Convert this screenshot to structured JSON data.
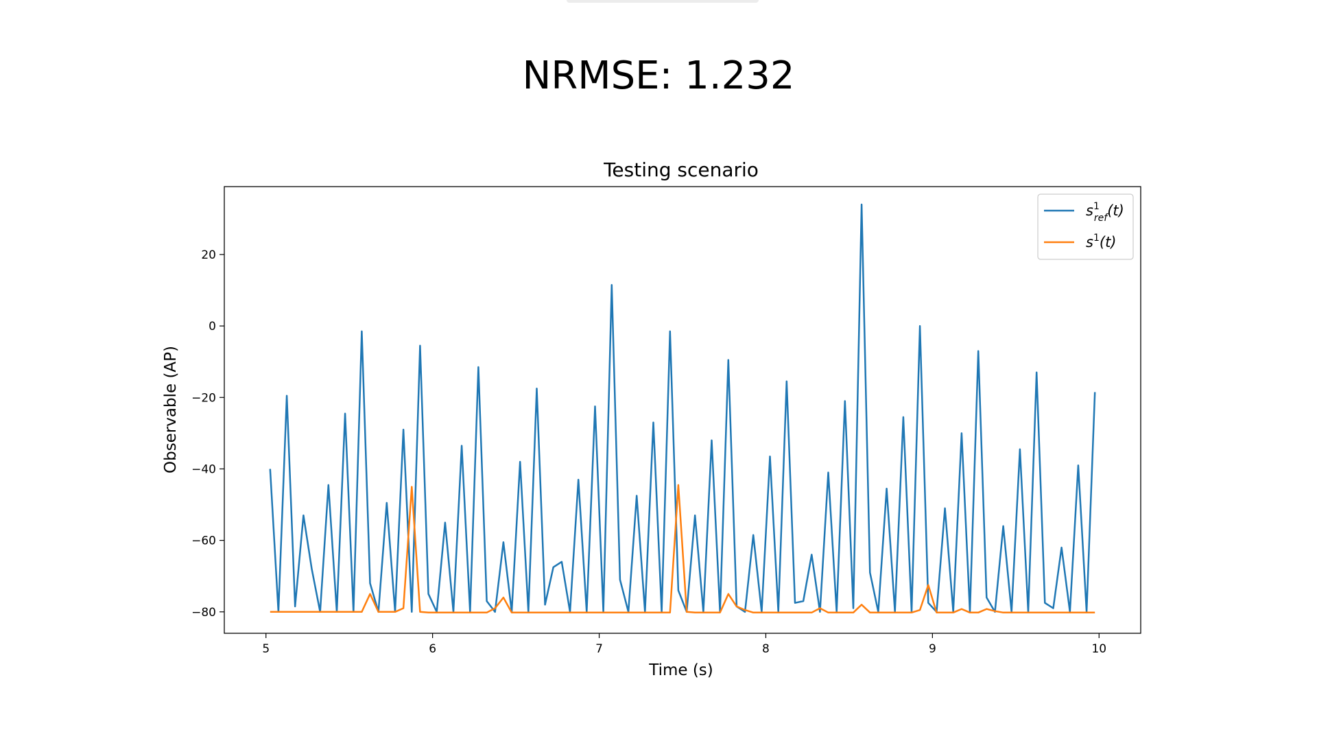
{
  "headline": "NRMSE: 1.232",
  "colors": {
    "series_ref": "#1f77b4",
    "series_model": "#ff7f0e"
  },
  "chart_data": {
    "type": "line",
    "title": "Testing scenario",
    "xlabel": "Time (s)",
    "ylabel": "Observable (AP)",
    "xlim": [
      4.75,
      10.25
    ],
    "ylim": [
      -86,
      39
    ],
    "xticks": [
      5,
      6,
      7,
      8,
      9,
      10
    ],
    "yticks": [
      20,
      0,
      -20,
      -40,
      -60,
      -80
    ],
    "xtick_labels": [
      "5",
      "6",
      "7",
      "8",
      "9",
      "10"
    ],
    "ytick_labels": [
      "20",
      "0",
      "−20",
      "−40",
      "−60",
      "−80"
    ],
    "grid": false,
    "legend_position": "top-right",
    "x": [
      5.025,
      5.075,
      5.125,
      5.175,
      5.225,
      5.275,
      5.325,
      5.375,
      5.425,
      5.475,
      5.525,
      5.575,
      5.625,
      5.675,
      5.725,
      5.775,
      5.825,
      5.875,
      5.925,
      5.975,
      6.025,
      6.075,
      6.125,
      6.175,
      6.225,
      6.275,
      6.325,
      6.375,
      6.425,
      6.475,
      6.525,
      6.575,
      6.625,
      6.675,
      6.725,
      6.775,
      6.825,
      6.875,
      6.925,
      6.975,
      7.025,
      7.075,
      7.125,
      7.175,
      7.225,
      7.275,
      7.325,
      7.375,
      7.425,
      7.475,
      7.525,
      7.575,
      7.625,
      7.675,
      7.725,
      7.775,
      7.825,
      7.875,
      7.925,
      7.975,
      8.025,
      8.075,
      8.125,
      8.175,
      8.225,
      8.275,
      8.325,
      8.375,
      8.425,
      8.475,
      8.525,
      8.575,
      8.625,
      8.675,
      8.725,
      8.775,
      8.825,
      8.875,
      8.925,
      8.975,
      9.025,
      9.075,
      9.125,
      9.175,
      9.225,
      9.275,
      9.325,
      9.375,
      9.425,
      9.475,
      9.525,
      9.575,
      9.625,
      9.675,
      9.725,
      9.775,
      9.825,
      9.875,
      9.925,
      9.975
    ],
    "series": [
      {
        "name": "s_ref^1(t)",
        "values": [
          -40,
          -80,
          -19.5,
          -78.5,
          -53,
          -68,
          -80,
          -44.5,
          -80,
          -24.5,
          -80,
          -1.5,
          -72,
          -80,
          -49.5,
          -80,
          -29,
          -80,
          -5.5,
          -75,
          -80,
          -55,
          -80,
          -33.5,
          -80,
          -11.5,
          -77,
          -80,
          -60.5,
          -80,
          -38,
          -80,
          -17.5,
          -78,
          -67.5,
          -66,
          -80,
          -43,
          -80,
          -22.5,
          -80,
          11.5,
          -71,
          -80,
          -47.5,
          -80,
          -27,
          -80,
          -1.5,
          -74,
          -80,
          -53,
          -80,
          -32,
          -80,
          -9.5,
          -78.5,
          -80,
          -58.5,
          -80,
          -36.5,
          -80,
          -15.5,
          -77.5,
          -77,
          -64,
          -80,
          -41,
          -80,
          -21,
          -79,
          34,
          -69,
          -80,
          -45.5,
          -80,
          -25.5,
          -80,
          0,
          -77.5,
          -80,
          -51,
          -80,
          -30,
          -80,
          -7,
          -76,
          -80,
          -56,
          -80,
          -34.5,
          -80,
          -13,
          -77.5,
          -79,
          -62,
          -80,
          -39,
          -80,
          -18.5
        ]
      },
      {
        "name": "s^1(t)",
        "values": [
          -80,
          -80,
          -80,
          -80,
          -80,
          -80,
          -80,
          -80,
          -80,
          -80,
          -80,
          -80,
          -75,
          -80,
          -80,
          -80,
          -79,
          -45,
          -80,
          -80.2,
          -80.2,
          -80.2,
          -80.2,
          -80.2,
          -80.2,
          -80.2,
          -80.2,
          -79,
          -76,
          -80.2,
          -80.2,
          -80.2,
          -80.2,
          -80.2,
          -80.2,
          -80.2,
          -80.2,
          -80.2,
          -80.2,
          -80.2,
          -80.2,
          -80.2,
          -80.2,
          -80.2,
          -80.2,
          -80.2,
          -80.2,
          -80.2,
          -80.2,
          -44.5,
          -80,
          -80.2,
          -80.2,
          -80.2,
          -80.2,
          -75,
          -78.5,
          -79.5,
          -80.2,
          -80.2,
          -80.2,
          -80.2,
          -80.2,
          -80.2,
          -80.2,
          -80.2,
          -79,
          -80.2,
          -80.2,
          -80.2,
          -80.2,
          -78,
          -80.2,
          -80.2,
          -80.2,
          -80.2,
          -80.2,
          -80.2,
          -79.5,
          -72.5,
          -80.2,
          -80.2,
          -80.2,
          -79.2,
          -80.2,
          -80.2,
          -79.2,
          -79.8,
          -80.2,
          -80.2,
          -80.2,
          -80.2,
          -80.2,
          -80.2,
          -80.2,
          -80.2,
          -80.2,
          -80.2,
          -80.2,
          -80.2
        ]
      }
    ]
  }
}
